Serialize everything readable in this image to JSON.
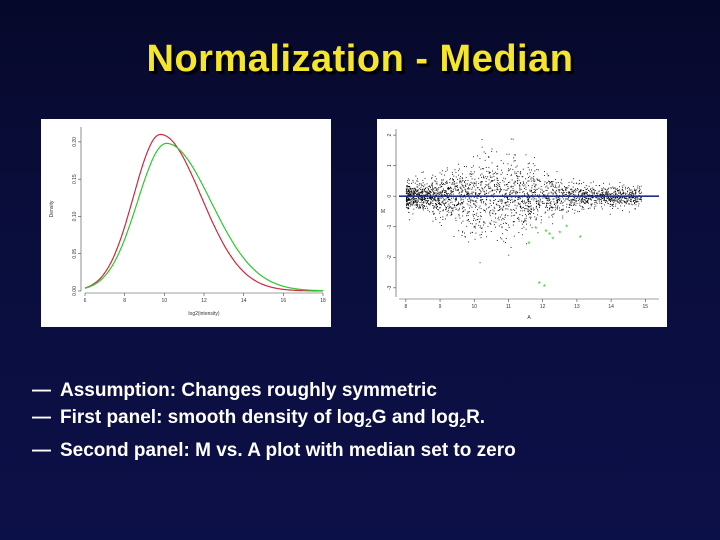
{
  "slide": {
    "title": "Normalization - Median",
    "bullets": [
      {
        "dash": "—",
        "text": "Assumption: Changes roughly symmetric"
      },
      {
        "dash": "—",
        "parts": [
          "First panel: smooth density of log",
          "2",
          "G and log",
          "2",
          "R."
        ]
      },
      {
        "dash": "—",
        "text": "Second panel: M vs. A plot with median set to zero"
      }
    ]
  },
  "chart_data": [
    {
      "type": "line",
      "panel": "first",
      "ylabel": "Density",
      "xlabel": "log2(intensity)",
      "x_ticks": [
        "6",
        "8",
        "10",
        "12",
        "14",
        "16",
        "18"
      ],
      "y_ticks": [
        "0.00",
        "0.05",
        "0.10",
        "0.15",
        "0.20"
      ],
      "xlim": [
        6,
        18
      ],
      "ylim": [
        0,
        0.22
      ],
      "series": [
        {
          "color": "#cc2a3c",
          "peak_x": 9.8,
          "peak_y": 0.21,
          "left_sd": 1.35,
          "right_sd": 2.05
        },
        {
          "color": "#2ec82e",
          "peak_x": 10.1,
          "peak_y": 0.198,
          "left_sd": 1.45,
          "right_sd": 2.25
        }
      ]
    },
    {
      "type": "scatter",
      "panel": "second",
      "xlabel": "A",
      "ylabel": "M",
      "x_ticks": [
        "8",
        "9",
        "10",
        "11",
        "12",
        "13",
        "14",
        "15"
      ],
      "y_ticks": [
        "-3",
        "-2",
        "-1",
        "0",
        "1",
        "2"
      ],
      "xlim": [
        7.8,
        15.4
      ],
      "ylim": [
        -3.3,
        2.2
      ],
      "median_line": 0,
      "line_color": "#1e2e8c",
      "point_color": "#000000",
      "highlight_color": "#2ec82e",
      "highlight_points": [
        [
          11.8,
          -1.1
        ],
        [
          12.1,
          -1.2
        ],
        [
          12.5,
          -1.25
        ],
        [
          13.1,
          -1.4
        ],
        [
          11.6,
          -1.6
        ],
        [
          12.3,
          -1.45
        ],
        [
          11.9,
          -2.9
        ],
        [
          12.05,
          -3.0
        ],
        [
          12.2,
          -1.3
        ],
        [
          12.7,
          -1.05
        ]
      ]
    }
  ]
}
